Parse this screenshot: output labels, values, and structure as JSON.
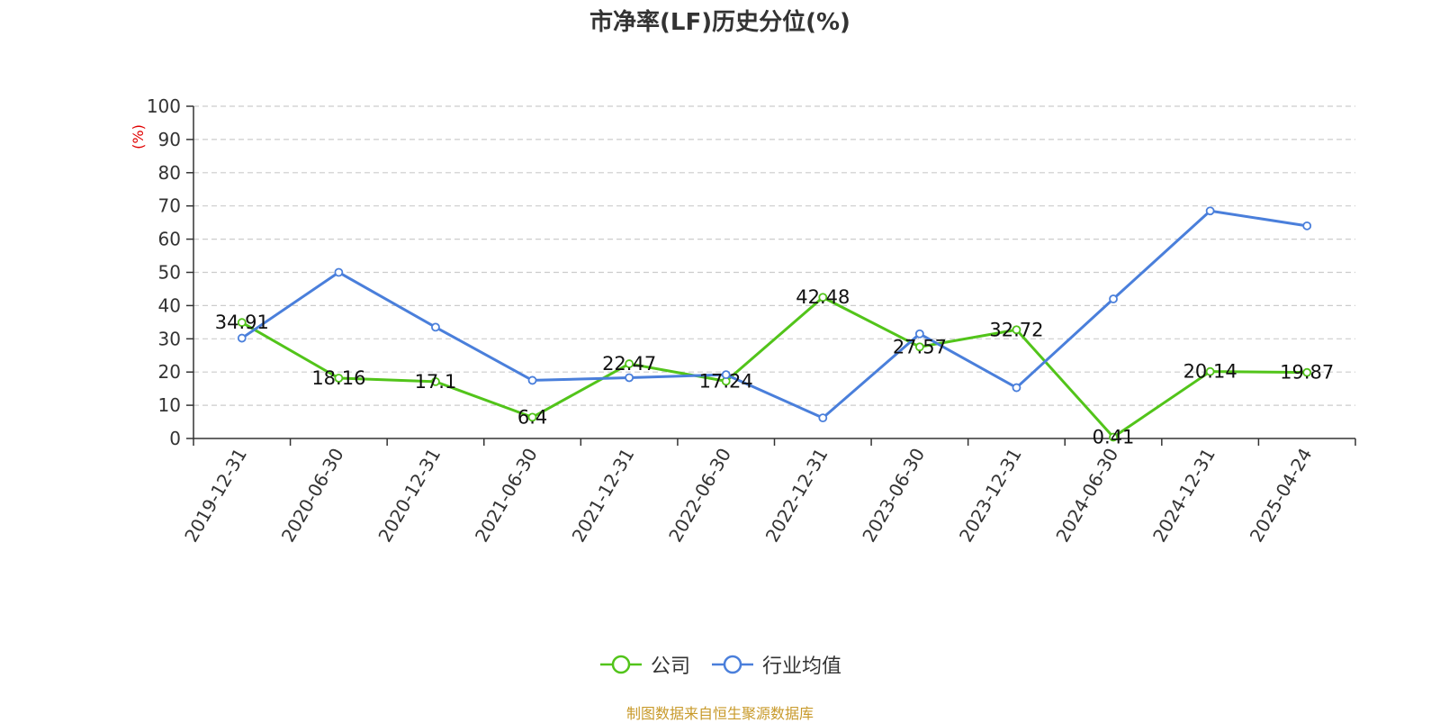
{
  "chart_data": {
    "type": "line",
    "title": "市净率(LF)历史分位(%)",
    "ylabel": "(%)",
    "xlabel": "",
    "ylim": [
      0,
      100
    ],
    "yticks": [
      0,
      10,
      20,
      30,
      40,
      50,
      60,
      70,
      80,
      90,
      100
    ],
    "grid": true,
    "legend_position": "bottom",
    "categories": [
      "2019-12-31",
      "2020-06-30",
      "2020-12-31",
      "2021-06-30",
      "2021-12-31",
      "2022-06-30",
      "2022-12-31",
      "2023-06-30",
      "2023-12-31",
      "2024-06-30",
      "2024-12-31",
      "2025-04-24"
    ],
    "series": [
      {
        "name": "公司",
        "color": "#52c41a",
        "values": [
          34.91,
          18.16,
          17.1,
          6.4,
          22.47,
          17.24,
          42.48,
          27.57,
          32.72,
          0.41,
          20.14,
          19.87
        ],
        "labels": [
          "34.91",
          "18.16",
          "17.1",
          "6.4",
          "22.47",
          "17.24",
          "42.48",
          "27.57",
          "32.72",
          "0.41",
          "20.14",
          "19.87"
        ]
      },
      {
        "name": "行业均值",
        "color": "#4a7fdb",
        "values": [
          30.2,
          50.0,
          33.5,
          17.5,
          18.3,
          19.2,
          6.2,
          31.5,
          15.3,
          42.0,
          68.5,
          64.0
        ]
      }
    ]
  },
  "source": "制图数据来自恒生聚源数据库"
}
